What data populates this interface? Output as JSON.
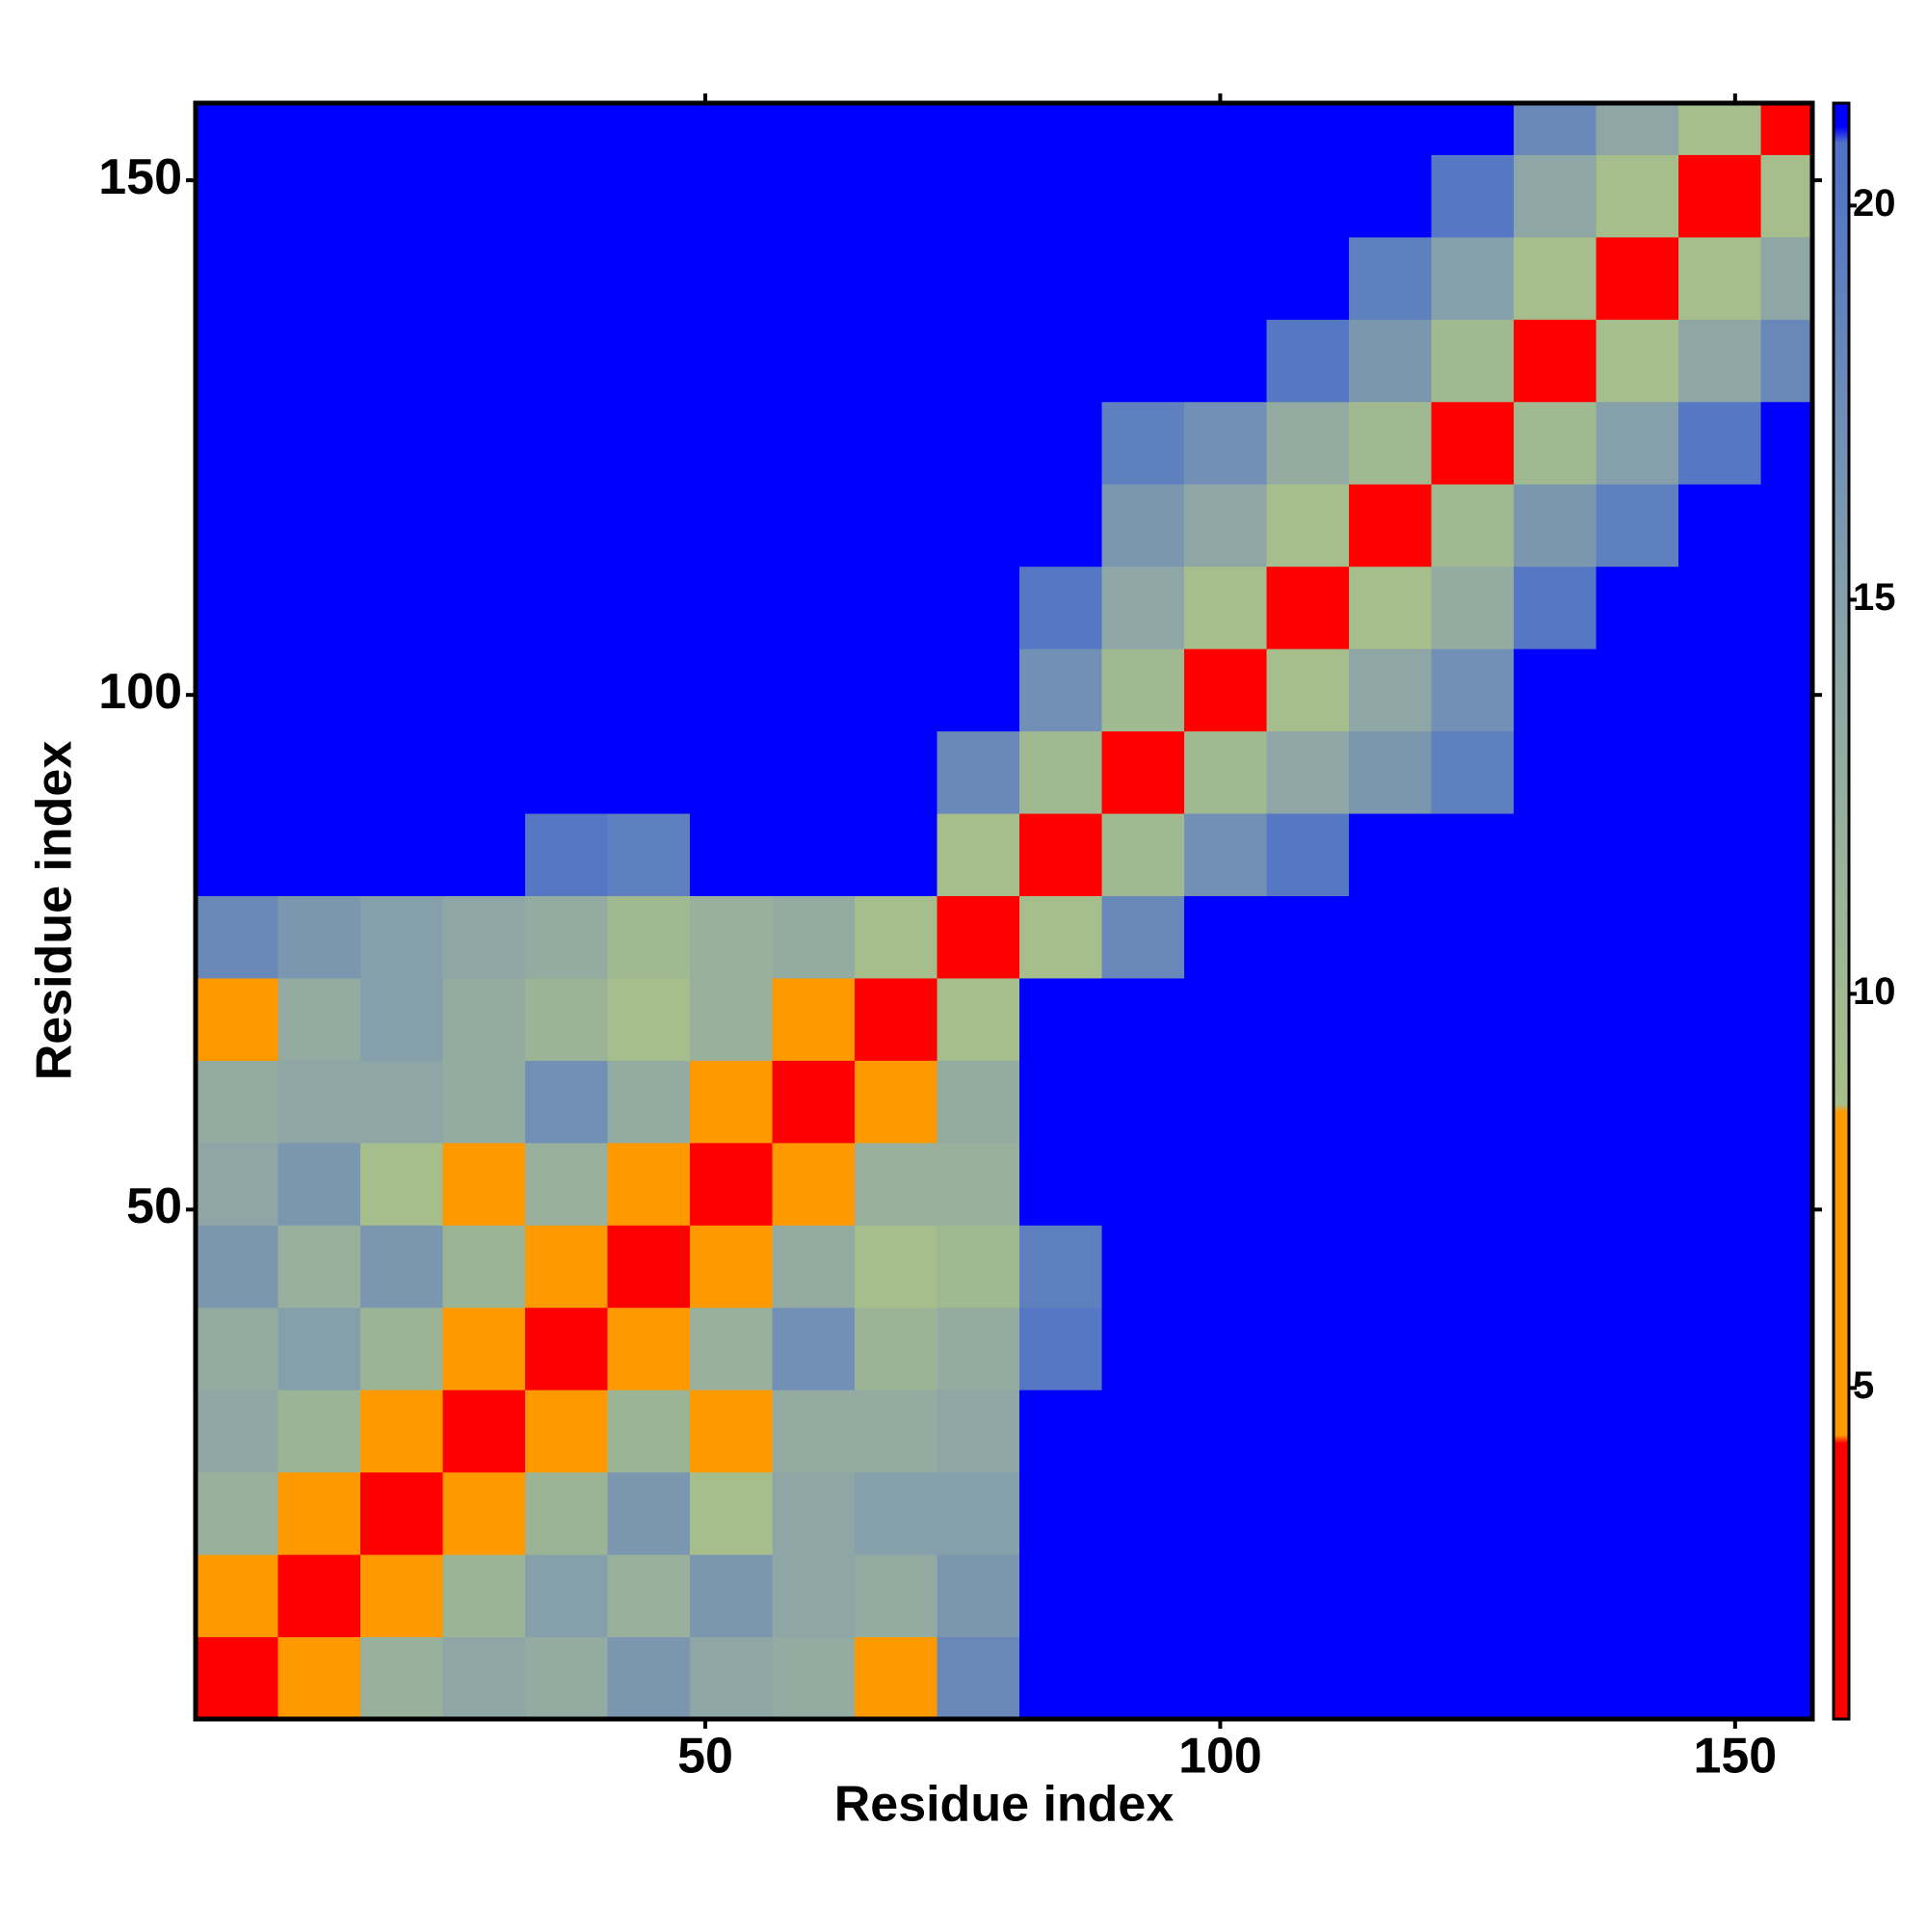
{
  "chart_data": {
    "type": "heatmap",
    "xlabel": "Residue index",
    "ylabel": "Residue index",
    "xlim": [
      0.5,
      157.5
    ],
    "ylim": [
      0.5,
      157.5
    ],
    "xticks": [
      50,
      100,
      150
    ],
    "yticks": [
      50,
      100,
      150
    ],
    "xbins": [
      0.5,
      8.5,
      16.5,
      24.5,
      32.5,
      40.5,
      48.5,
      56.5,
      64.5,
      72.5,
      80.5,
      88.5,
      96.5,
      104.5,
      112.5,
      120.5,
      128.5,
      136.5,
      144.5,
      152.5,
      157.5
    ],
    "ybins": [
      0.5,
      8.5,
      16.5,
      24.5,
      32.5,
      40.5,
      48.5,
      56.5,
      64.5,
      72.5,
      80.5,
      88.5,
      96.5,
      104.5,
      112.5,
      120.5,
      128.5,
      136.5,
      144.5,
      152.5,
      157.5
    ],
    "values": [
      [
        4,
        8,
        12,
        14,
        13,
        16,
        14,
        13,
        8,
        18,
        21,
        21,
        21,
        21,
        21,
        21,
        21,
        21,
        21,
        21
      ],
      [
        8,
        4,
        8,
        11,
        15,
        12,
        16,
        14,
        13,
        16,
        21,
        21,
        21,
        21,
        21,
        21,
        21,
        21,
        21,
        21
      ],
      [
        12,
        8,
        4,
        8,
        11,
        16,
        9,
        14,
        15,
        15,
        21,
        21,
        21,
        21,
        21,
        21,
        21,
        21,
        21,
        21
      ],
      [
        14,
        11,
        8,
        4,
        7,
        11,
        8,
        13,
        13,
        14,
        21,
        21,
        21,
        21,
        21,
        21,
        21,
        21,
        21,
        21
      ],
      [
        13,
        15,
        11,
        7,
        4,
        8,
        12,
        17,
        11,
        13,
        20,
        21,
        21,
        21,
        21,
        21,
        21,
        21,
        21,
        21
      ],
      [
        16,
        12,
        16,
        11,
        8,
        4,
        7,
        13,
        9,
        10,
        19,
        21,
        21,
        21,
        21,
        21,
        21,
        21,
        21,
        21
      ],
      [
        14,
        16,
        9,
        8,
        12,
        7,
        4,
        8,
        12,
        12,
        21,
        21,
        21,
        21,
        21,
        21,
        21,
        21,
        21,
        21
      ],
      [
        13,
        14,
        14,
        13,
        17,
        13,
        8,
        4,
        7,
        13,
        21,
        21,
        21,
        21,
        21,
        21,
        21,
        21,
        21,
        21
      ],
      [
        8,
        13,
        15,
        13,
        11,
        9,
        12,
        7,
        4,
        9,
        21,
        21,
        21,
        21,
        21,
        21,
        21,
        21,
        21,
        21
      ],
      [
        18,
        16,
        15,
        14,
        13,
        10,
        12,
        13,
        9,
        4,
        9,
        18,
        21,
        21,
        21,
        21,
        21,
        21,
        21,
        21
      ],
      [
        21,
        21,
        21,
        21,
        20,
        19,
        21,
        21,
        21,
        9,
        4,
        10,
        17,
        20,
        21,
        21,
        21,
        21,
        21,
        21
      ],
      [
        21,
        21,
        21,
        21,
        21,
        21,
        21,
        21,
        21,
        18,
        10,
        4,
        10,
        14,
        16,
        19,
        21,
        21,
        21,
        21
      ],
      [
        21,
        21,
        21,
        21,
        21,
        21,
        21,
        21,
        21,
        21,
        17,
        10,
        4,
        9,
        14,
        17,
        21,
        21,
        21,
        21
      ],
      [
        21,
        21,
        21,
        21,
        21,
        21,
        21,
        21,
        21,
        21,
        20,
        14,
        9,
        4,
        9,
        13,
        20,
        21,
        21,
        21
      ],
      [
        21,
        21,
        21,
        21,
        21,
        21,
        21,
        21,
        21,
        21,
        21,
        16,
        14,
        9,
        4,
        10,
        16,
        19,
        21,
        21
      ],
      [
        21,
        21,
        21,
        21,
        21,
        21,
        21,
        21,
        21,
        21,
        21,
        19,
        17,
        13,
        10,
        4,
        10,
        15,
        20,
        21
      ],
      [
        21,
        21,
        21,
        21,
        21,
        21,
        21,
        21,
        21,
        21,
        21,
        21,
        21,
        20,
        16,
        10,
        4,
        9,
        14,
        18
      ],
      [
        21,
        21,
        21,
        21,
        21,
        21,
        21,
        21,
        21,
        21,
        21,
        21,
        21,
        21,
        19,
        15,
        9,
        4,
        9,
        14
      ],
      [
        21,
        21,
        21,
        21,
        21,
        21,
        21,
        21,
        21,
        21,
        21,
        21,
        21,
        21,
        21,
        20,
        14,
        9,
        4,
        9
      ],
      [
        21,
        21,
        21,
        21,
        21,
        21,
        21,
        21,
        21,
        21,
        21,
        21,
        21,
        21,
        21,
        21,
        18,
        14,
        9,
        4
      ]
    ],
    "zlim": [
      0.8,
      21.3
    ],
    "zticks": [
      5,
      10,
      15,
      20
    ],
    "colorscale": [
      [
        0.8,
        "#ff0000"
      ],
      [
        4.3,
        "#ff0000"
      ],
      [
        4.4,
        "#ff9900"
      ],
      [
        8.5,
        "#ff9900"
      ],
      [
        8.6,
        "#a8bf8a"
      ],
      [
        14,
        "#8ea7a6"
      ],
      [
        20.8,
        "#4e72c8"
      ],
      [
        21,
        "#0000ff"
      ],
      [
        21.3,
        "#0000ff"
      ]
    ]
  }
}
